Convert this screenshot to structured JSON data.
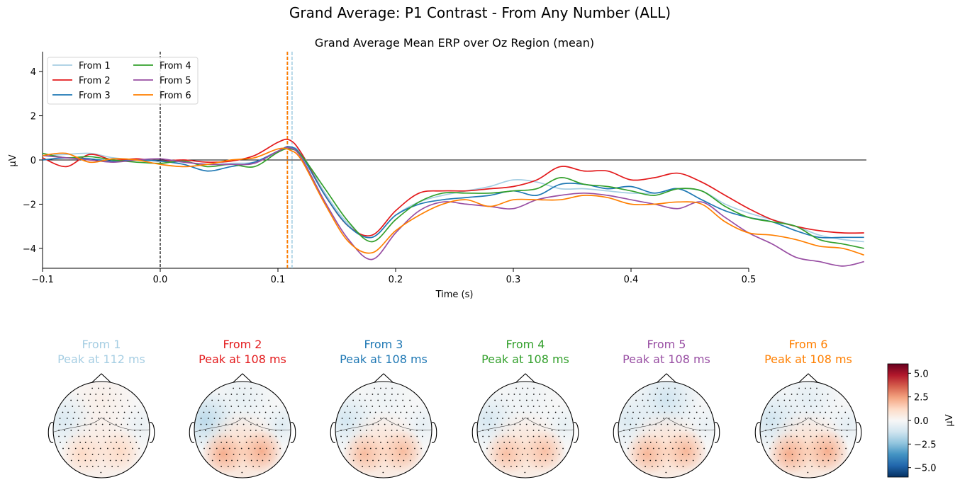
{
  "figure": {
    "title": "Grand Average: P1 Contrast - From Any Number (ALL)"
  },
  "chart_data": [
    {
      "type": "line",
      "title": "Grand Average Mean ERP over Oz Region (mean)",
      "xlabel": "Time (s)",
      "ylabel": "µV",
      "xlim": [
        -0.1,
        0.6
      ],
      "ylim": [
        -4.9,
        4.9
      ],
      "x_ticks": [
        -0.1,
        0.0,
        0.1,
        0.2,
        0.3,
        0.4,
        0.5
      ],
      "x_tick_labels": [
        "−0.1",
        "0.0",
        "0.1",
        "0.2",
        "0.3",
        "0.4",
        "0.5"
      ],
      "y_ticks": [
        4,
        2,
        0,
        -2,
        -4
      ],
      "y_tick_labels": [
        "4",
        "2",
        "0",
        "−2",
        "−4"
      ],
      "grid": false,
      "legend_position": "top-left",
      "stimulus_onset": 0.0,
      "x": [
        -0.1,
        -0.08,
        -0.06,
        -0.04,
        -0.02,
        0.0,
        0.02,
        0.04,
        0.06,
        0.08,
        0.1,
        0.11,
        0.12,
        0.14,
        0.16,
        0.18,
        0.2,
        0.22,
        0.24,
        0.26,
        0.28,
        0.3,
        0.32,
        0.34,
        0.36,
        0.38,
        0.4,
        0.42,
        0.44,
        0.46,
        0.48,
        0.5,
        0.52,
        0.54,
        0.56,
        0.58,
        0.598
      ],
      "series": [
        {
          "name": "From 1",
          "color": "#a6cee3",
          "peak_time": 0.112,
          "values": [
            0.2,
            0.25,
            0.3,
            0.1,
            0.0,
            -0.05,
            -0.1,
            -0.2,
            -0.15,
            -0.1,
            0.35,
            0.55,
            0.3,
            -1.5,
            -2.9,
            -3.5,
            -2.5,
            -1.9,
            -1.6,
            -1.4,
            -1.2,
            -0.9,
            -1.0,
            -1.3,
            -1.3,
            -1.4,
            -1.5,
            -1.5,
            -1.3,
            -1.4,
            -2.0,
            -2.4,
            -2.7,
            -3.0,
            -3.4,
            -3.6,
            -3.7
          ]
        },
        {
          "name": "From 2",
          "color": "#e31a1c",
          "peak_time": 0.108,
          "values": [
            0.1,
            -0.3,
            0.25,
            0.0,
            0.05,
            -0.05,
            0.0,
            -0.1,
            -0.05,
            0.2,
            0.8,
            0.9,
            0.3,
            -1.6,
            -3.0,
            -3.4,
            -2.3,
            -1.5,
            -1.4,
            -1.4,
            -1.3,
            -1.2,
            -0.9,
            -0.3,
            -0.5,
            -0.5,
            -0.9,
            -0.8,
            -0.6,
            -1.0,
            -1.6,
            -2.2,
            -2.7,
            -3.0,
            -3.2,
            -3.3,
            -3.3
          ]
        },
        {
          "name": "From 3",
          "color": "#1f78b4",
          "peak_time": 0.108,
          "values": [
            0.0,
            0.1,
            0.05,
            -0.05,
            0.0,
            -0.05,
            -0.2,
            -0.5,
            -0.3,
            -0.1,
            0.4,
            0.6,
            0.2,
            -1.6,
            -3.0,
            -3.5,
            -2.5,
            -2.0,
            -1.8,
            -1.7,
            -1.6,
            -1.4,
            -1.6,
            -1.1,
            -1.1,
            -1.3,
            -1.2,
            -1.5,
            -1.3,
            -1.8,
            -2.3,
            -2.6,
            -2.8,
            -3.2,
            -3.5,
            -3.5,
            -3.5
          ]
        },
        {
          "name": "From 4",
          "color": "#33a02c",
          "peak_time": 0.108,
          "values": [
            0.3,
            0.1,
            0.15,
            0.0,
            -0.1,
            -0.15,
            -0.05,
            -0.3,
            -0.2,
            -0.3,
            0.35,
            0.5,
            0.2,
            -1.3,
            -2.8,
            -3.7,
            -2.7,
            -1.9,
            -1.5,
            -1.5,
            -1.5,
            -1.4,
            -1.3,
            -0.8,
            -1.1,
            -1.2,
            -1.4,
            -1.6,
            -1.3,
            -1.4,
            -2.1,
            -2.6,
            -2.8,
            -3.0,
            -3.6,
            -3.8,
            -4.0
          ]
        },
        {
          "name": "From 5",
          "color": "#984ea3",
          "peak_time": 0.108,
          "values": [
            0.2,
            0.1,
            0.0,
            -0.1,
            0.0,
            0.05,
            -0.1,
            -0.2,
            -0.2,
            -0.15,
            0.4,
            0.55,
            0.1,
            -1.9,
            -3.6,
            -4.5,
            -3.3,
            -2.3,
            -1.9,
            -2.0,
            -2.1,
            -2.2,
            -1.8,
            -1.6,
            -1.5,
            -1.6,
            -1.8,
            -2.0,
            -2.2,
            -1.9,
            -2.6,
            -3.3,
            -3.8,
            -4.4,
            -4.6,
            -4.8,
            -4.6
          ]
        },
        {
          "name": "From 6",
          "color": "#ff7f00",
          "peak_time": 0.108,
          "values": [
            0.2,
            0.3,
            -0.1,
            0.05,
            0.0,
            -0.2,
            -0.3,
            -0.2,
            0.0,
            0.1,
            0.5,
            0.45,
            0.0,
            -2.0,
            -3.7,
            -4.2,
            -3.2,
            -2.5,
            -2.0,
            -1.8,
            -2.1,
            -1.8,
            -1.8,
            -1.8,
            -1.6,
            -1.7,
            -2.0,
            -2.0,
            -1.9,
            -2.0,
            -2.8,
            -3.3,
            -3.4,
            -3.6,
            -3.9,
            -4.0,
            -4.3
          ]
        }
      ]
    },
    {
      "type": "heatmap",
      "subtype": "scalp-topography",
      "colorbar": {
        "label": "µV",
        "range": [
          -6,
          6
        ],
        "ticks": [
          5.0,
          2.5,
          0.0,
          -2.5,
          -5.0
        ],
        "tick_labels": [
          "5.0",
          "2.5",
          "0.0",
          "−2.5",
          "−5.0"
        ],
        "colormap": "RdBu_r"
      },
      "maps": [
        {
          "title": "From 1",
          "subtitle": "Peak at 112 ms",
          "color": "#a6cee3",
          "frontal": 0.4,
          "lateral": -0.9,
          "posterior": 1.2
        },
        {
          "title": "From 2",
          "subtitle": "Peak at 108 ms",
          "color": "#e31a1c",
          "frontal": -0.5,
          "lateral": -1.6,
          "posterior": 2.2
        },
        {
          "title": "From 3",
          "subtitle": "Peak at 108 ms",
          "color": "#1f78b4",
          "frontal": -0.3,
          "lateral": -1.1,
          "posterior": 1.9
        },
        {
          "title": "From 4",
          "subtitle": "Peak at 108 ms",
          "color": "#33a02c",
          "frontal": -0.3,
          "lateral": -1.0,
          "posterior": 1.8
        },
        {
          "title": "From 5",
          "subtitle": "Peak at 108 ms",
          "color": "#984ea3",
          "frontal": -1.2,
          "lateral": -0.9,
          "posterior": 2.0
        },
        {
          "title": "From 6",
          "subtitle": "Peak at 108 ms",
          "color": "#ff7f00",
          "frontal": -0.6,
          "lateral": -1.2,
          "posterior": 2.2
        }
      ]
    }
  ]
}
